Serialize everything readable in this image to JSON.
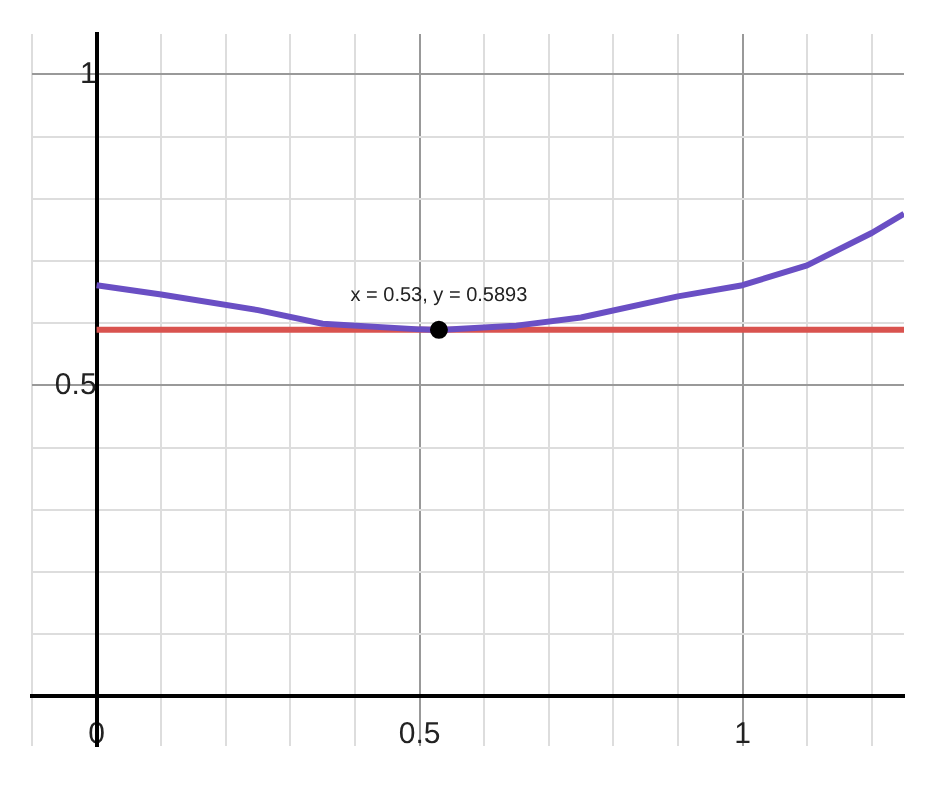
{
  "chart_data": {
    "type": "line",
    "xlim": [
      -0.1,
      1.25
    ],
    "ylim": [
      -0.08,
      1.065
    ],
    "xticks": [
      {
        "value": -0.1,
        "label": null
      },
      {
        "value": 0,
        "label": "0"
      },
      {
        "value": 0.1,
        "label": null
      },
      {
        "value": 0.2,
        "label": null
      },
      {
        "value": 0.3,
        "label": null
      },
      {
        "value": 0.4,
        "label": null
      },
      0.5,
      {
        "value": 0.6,
        "label": null
      },
      {
        "value": 0.7,
        "label": null
      },
      {
        "value": 0.8,
        "label": null
      },
      {
        "value": 0.9,
        "label": null
      },
      1,
      {
        "value": 1.1,
        "label": null
      },
      {
        "value": 1.2,
        "label": null
      }
    ],
    "yticks": [
      {
        "value": 0,
        "label": null
      },
      {
        "value": 0.1,
        "label": null
      },
      {
        "value": 0.2,
        "label": null
      },
      {
        "value": 0.3,
        "label": null
      },
      {
        "value": 0.4,
        "label": null
      },
      0.5,
      {
        "value": 0.6,
        "label": null
      },
      {
        "value": 0.7,
        "label": null
      },
      {
        "value": 0.8,
        "label": null
      },
      {
        "value": 0.9,
        "label": null
      },
      1
    ],
    "grid": true,
    "legend": false,
    "series": [
      {
        "color": "#6a4fc4",
        "marker": "none",
        "x": [
          0,
          0.1,
          0.25,
          0.35,
          0.5,
          0.53,
          0.65,
          0.75,
          0.9,
          1,
          1.1,
          1.2,
          1.25
        ],
        "values": [
          0.661,
          0.646,
          0.621,
          0.599,
          0.59,
          0.589,
          0.596,
          0.609,
          0.643,
          0.661,
          0.693,
          0.745,
          0.776
        ]
      },
      {
        "type": "scatter",
        "color": "#000000",
        "marker": "circle",
        "x": [
          0.53
        ],
        "values": [
          0.5893
        ]
      }
    ],
    "ref_lines": [
      {
        "axis": "y",
        "value": 0.5893,
        "color": "#d9534f"
      }
    ],
    "annotations": [
      {
        "text": "x = 0.53, y = 0.5893",
        "x": 0.53,
        "y": 0.5893
      }
    ]
  }
}
